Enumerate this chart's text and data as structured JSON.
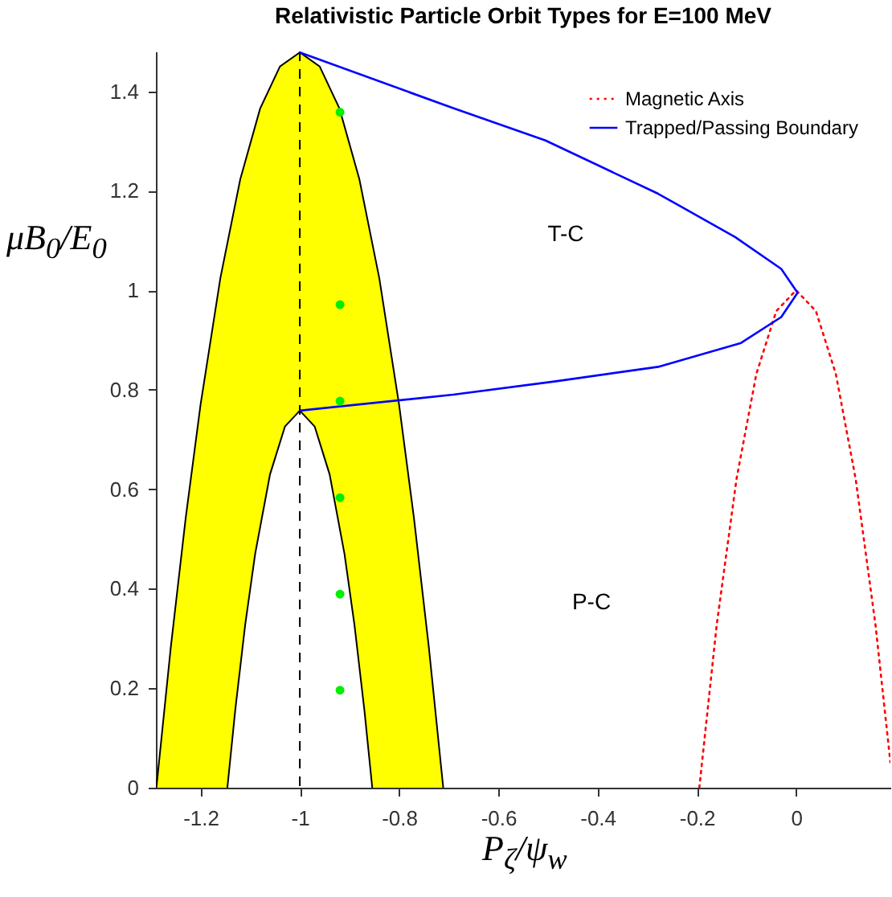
{
  "chart_data": {
    "type": "line",
    "title": "Relativistic Particle Orbit Types for E=100 MeV",
    "xlabel": "P$_{ζ}$/ψ$_{w}$",
    "ylabel": "μB$_{0}$/E$_{0}$",
    "xlim": [
      -1.29,
      0.19
    ],
    "xticks": [
      -1.2,
      -1,
      -0.8,
      -0.6,
      -0.4,
      -0.2,
      0
    ],
    "ylim": [
      0,
      1.48
    ],
    "yticks": [
      0,
      0.2,
      0.4,
      0.6,
      0.8,
      1,
      1.2,
      1.4
    ],
    "legend": "top right",
    "series": [
      {
        "type": "area",
        "color": "#ffff00",
        "x": [
          -1.289,
          -1.26,
          -1.23,
          -1.2,
          -1.16,
          -1.12,
          -1.08,
          -1.04,
          -1,
          -0.96,
          -0.92,
          -0.88,
          -0.84,
          -0.8,
          -0.77,
          -0.74,
          -0.711
        ],
        "values": [
          0,
          0.282,
          0.542,
          0.77,
          1.025,
          1.223,
          1.365,
          1.45,
          1.478,
          1.45,
          1.365,
          1.223,
          1.025,
          0.77,
          0.542,
          0.282,
          0
        ]
      },
      {
        "type": "area",
        "color": "#ffffff",
        "x": [
          -1.146,
          -1.13,
          -1.11,
          -1.09,
          -1.06,
          -1.03,
          -1,
          -0.97,
          -0.94,
          -0.91,
          -0.89,
          -0.87,
          -0.854
        ],
        "values": [
          0,
          0.157,
          0.328,
          0.47,
          0.63,
          0.726,
          0.758,
          0.726,
          0.63,
          0.47,
          0.328,
          0.157,
          0
        ]
      },
      {
        "name": "Magnetic Axis",
        "type": "line",
        "color": "#ff0000",
        "line_style": "dotted",
        "x": [
          -0.195,
          -0.16,
          -0.12,
          -0.08,
          -0.04,
          0,
          0.04,
          0.08,
          0.12,
          0.16,
          0.19
        ],
        "values": [
          0,
          0.327,
          0.621,
          0.832,
          0.958,
          1,
          0.958,
          0.832,
          0.621,
          0.327,
          0.051
        ]
      },
      {
        "name": "Trapped/Passing Boundary",
        "type": "line",
        "color": "#0000ff",
        "line_style": "solid",
        "x": [
          -1,
          -0.691,
          -0.505,
          -0.278,
          -0.123,
          -0.03,
          0.003,
          -0.03,
          -0.111,
          -0.278,
          -0.484,
          -0.691,
          -1
        ],
        "values": [
          1.478,
          1.366,
          1.301,
          1.194,
          1.107,
          1.043,
          0.995,
          0.946,
          0.894,
          0.846,
          0.817,
          0.79,
          0.758
        ]
      },
      {
        "type": "scatter",
        "color": "#00ee00",
        "marker": "circle",
        "x": [
          -0.919,
          -0.919,
          -0.919,
          -0.919,
          -0.919,
          -0.919
        ],
        "values": [
          1.358,
          0.971,
          0.777,
          0.583,
          0.389,
          0.196
        ]
      }
    ],
    "ref_lines": [
      {
        "axis": "x",
        "value": -1,
        "color": "#000000",
        "line_style": "dashed"
      }
    ],
    "annotations": [
      "T-C",
      "P-C"
    ]
  }
}
